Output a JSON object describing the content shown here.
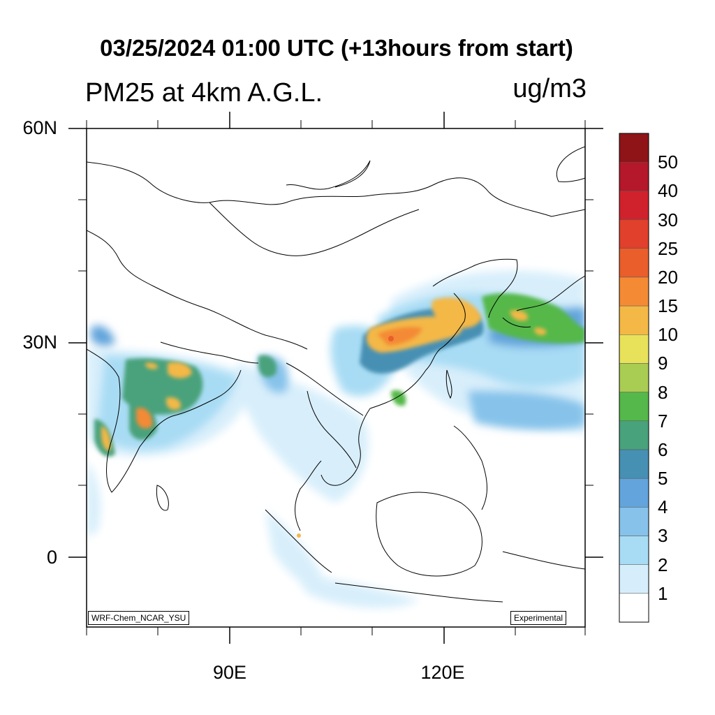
{
  "title": "03/25/2024 01:00 UTC (+13hours from start)",
  "subtitle": "PM25 at 4km A.G.L.",
  "units": "ug/m3",
  "lat_labels": [
    "60N",
    "30N",
    "0"
  ],
  "lon_labels": [
    "90E",
    "120E"
  ],
  "model_tag": "WRF-Chem_NCAR_YSU",
  "status_tag": "Experimental",
  "colorbar": {
    "labels": [
      "1",
      "2",
      "3",
      "4",
      "5",
      "6",
      "7",
      "8",
      "9",
      "10",
      "15",
      "20",
      "25",
      "30",
      "40",
      "50"
    ],
    "colors": [
      "#ffffff",
      "#d6eefb",
      "#a8dcf4",
      "#86c2ea",
      "#62a4db",
      "#4690b4",
      "#48a27c",
      "#55b84a",
      "#a9cc52",
      "#e8e25a",
      "#f4b846",
      "#f48a34",
      "#ea5e2c",
      "#e0402c",
      "#d0222c",
      "#b4182a",
      "#8e1418"
    ]
  }
}
